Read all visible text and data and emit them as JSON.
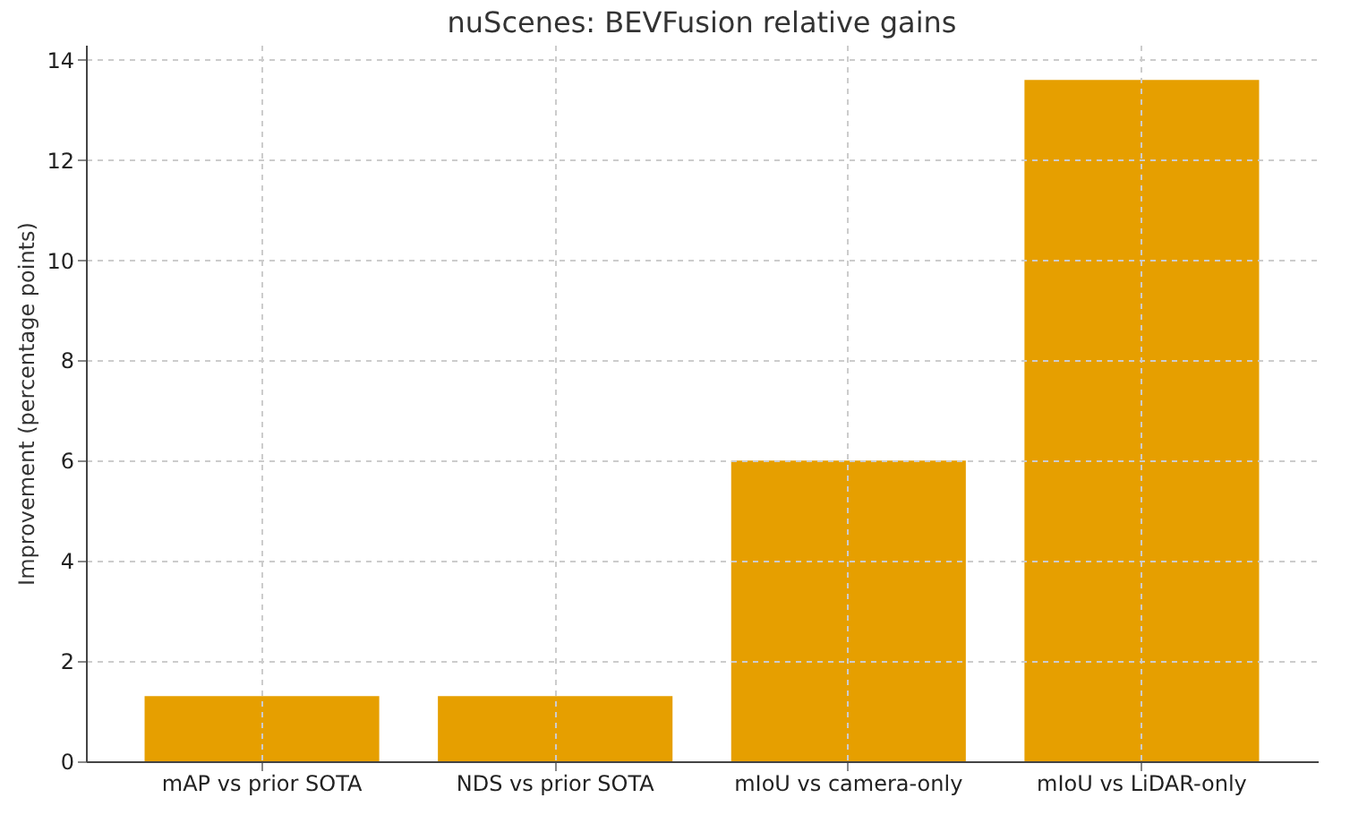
{
  "chart_data": {
    "type": "bar",
    "title": "nuScenes: BEVFusion relative gains",
    "ylabel": "Improvement (percentage points)",
    "categories": [
      "mAP vs prior SOTA",
      "NDS vs prior SOTA",
      "mIoU vs camera-only",
      "mIoU vs LiDAR-only"
    ],
    "values": [
      1.3,
      1.3,
      6.0,
      13.6
    ],
    "color": "#e69f00",
    "ylim": [
      0,
      14.3
    ],
    "yticks": [
      0,
      2,
      4,
      6,
      8,
      10,
      12,
      14
    ],
    "grid": true
  }
}
